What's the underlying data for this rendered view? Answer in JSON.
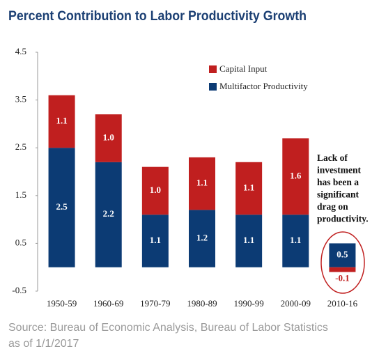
{
  "chart_data": {
    "type": "stacked_bar",
    "title": "Percent Contribution to Labor Productivity Growth",
    "categories": [
      "1950-59",
      "1960-69",
      "1970-79",
      "1980-89",
      "1990-99",
      "2000-09",
      "2010-16"
    ],
    "series": [
      {
        "name": "Multifactor Productivity",
        "color": "#0c3b74",
        "values": [
          2.5,
          2.2,
          1.1,
          1.2,
          1.1,
          1.1,
          0.5
        ],
        "value_labels": [
          "2.5",
          "2.2",
          "1.1",
          "1.2",
          "1.1",
          "1.1",
          "0.5"
        ]
      },
      {
        "name": "Capital Input",
        "color": "#c01f1f",
        "values": [
          1.1,
          1.0,
          1.0,
          1.1,
          1.1,
          1.6,
          -0.1
        ],
        "value_labels": [
          "1.1",
          "1.0",
          "1.0",
          "1.1",
          "1.1",
          "1.6",
          "-0.1"
        ]
      }
    ],
    "ylim": [
      -0.5,
      4.5
    ],
    "yticks": [
      -0.5,
      0.5,
      1.5,
      2.5,
      3.5,
      4.5
    ],
    "annotation": [
      "Lack of",
      "investment",
      "has been a",
      "significant",
      "drag on",
      "productivity."
    ],
    "source": [
      "Source: Bureau of Economic Analysis, Bureau of Labor Statistics",
      "as of 1/1/2017"
    ]
  }
}
